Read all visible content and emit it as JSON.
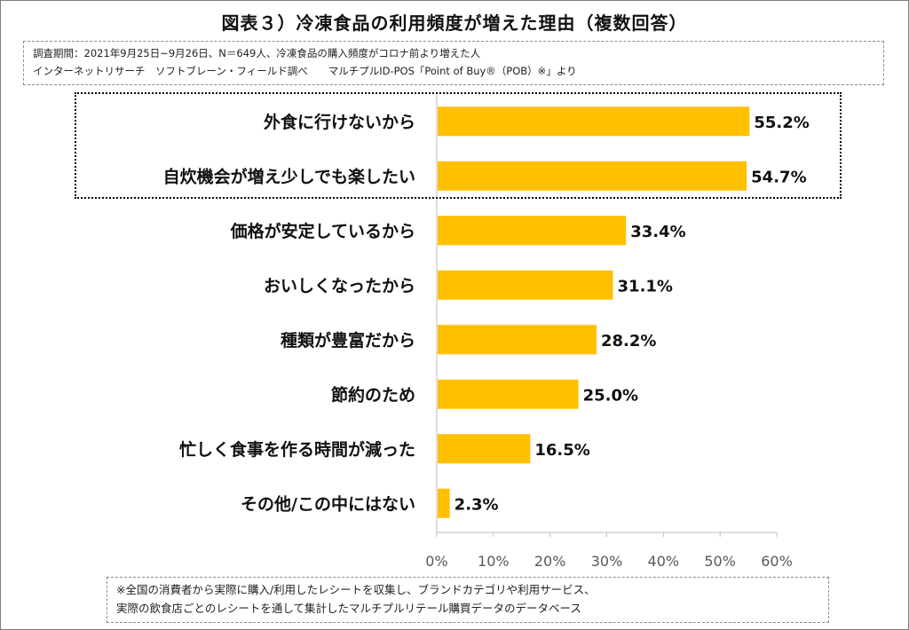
{
  "title": "図表３）冷凍食品の利用頻度が増えた理由（複数回答）",
  "source": {
    "line1": "調査期間：2021年9月25日~9月26日、N＝649人、冷凍食品の購入頻度がコロナ前より増えた人",
    "line2": "インターネットリサーチ　ソフトブレーン・フィールド調べ　　マルチプルID-POS「Point of Buy®（POB）※」より"
  },
  "note": {
    "line1": "※全国の消費者から実際に購入/利用したレシートを収集し、ブランドカテゴリや利用サービス、",
    "line2": "実際の飲食店ごとのレシートを通して集計したマルチプルリテール購買データのデータベース"
  },
  "chart_data": {
    "type": "bar",
    "orientation": "horizontal",
    "categories": [
      "外食に行けないから",
      "自炊機会が増え少しでも楽したい",
      "価格が安定しているから",
      "おいしくなったから",
      "種類が豊富だから",
      "節約のため",
      "忙しく食事を作る時間が減った",
      "その他/この中にはない"
    ],
    "values": [
      55.2,
      54.7,
      33.4,
      31.1,
      28.2,
      25.0,
      16.5,
      2.3
    ],
    "value_labels": [
      "55.2%",
      "54.7%",
      "33.4%",
      "31.1%",
      "28.2%",
      "25.0%",
      "16.5%",
      "2.3%"
    ],
    "xlim": [
      0,
      60
    ],
    "xticks": [
      "0%",
      "10%",
      "20%",
      "30%",
      "40%",
      "50%",
      "60%"
    ],
    "bar_color": "#FFC000",
    "highlighted_categories": [
      "外食に行けないから",
      "自炊機会が増え少しでも楽したい"
    ],
    "grid": false
  }
}
